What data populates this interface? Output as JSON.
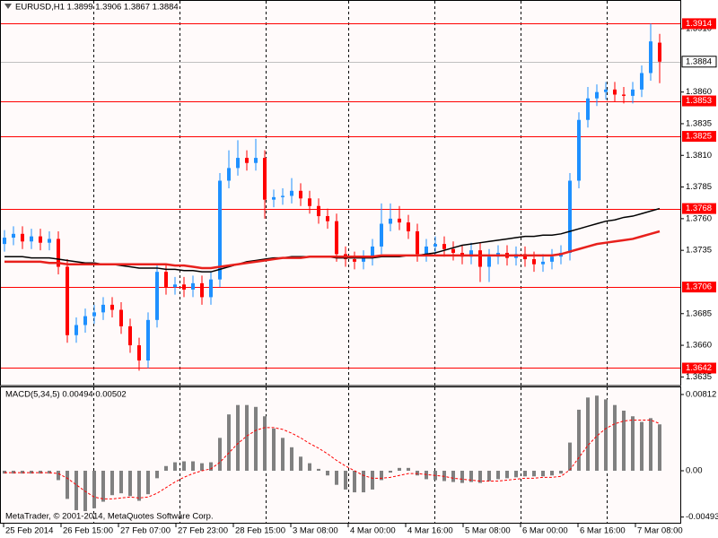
{
  "chart_data": [
    {
      "type": "candlestick",
      "title": "EURUSD,H1  1.3899 1.3906 1.3867 1.3884",
      "up_color": "#1e90ff",
      "down_color": "#ff0000",
      "level_color": "#ff0000",
      "candles": [
        [
          1.374,
          1.3751,
          1.3734,
          1.3745
        ],
        [
          1.3745,
          1.3754,
          1.3739,
          1.3748
        ],
        [
          1.3748,
          1.3754,
          1.3736,
          1.3742
        ],
        [
          1.3742,
          1.3752,
          1.3736,
          1.3746
        ],
        [
          1.3746,
          1.3752,
          1.3735,
          1.3741
        ],
        [
          1.3741,
          1.375,
          1.3735,
          1.3744
        ],
        [
          1.3744,
          1.375,
          1.3716,
          1.3722
        ],
        [
          1.3722,
          1.3728,
          1.3662,
          1.3668
        ],
        [
          1.3668,
          1.3682,
          1.3662,
          1.3676
        ],
        [
          1.3676,
          1.3689,
          1.367,
          1.3683
        ],
        [
          1.3683,
          1.3692,
          1.3677,
          1.3686
        ],
        [
          1.3686,
          1.3698,
          1.368,
          1.3692
        ],
        [
          1.3692,
          1.3698,
          1.3682,
          1.3688
        ],
        [
          1.3688,
          1.3694,
          1.3669,
          1.3675
        ],
        [
          1.3675,
          1.3681,
          1.3654,
          1.366
        ],
        [
          1.366,
          1.3666,
          1.364,
          1.3648
        ],
        [
          1.3648,
          1.3686,
          1.3642,
          1.368
        ],
        [
          1.368,
          1.3724,
          1.3674,
          1.3718
        ],
        [
          1.3718,
          1.3724,
          1.37,
          1.3706
        ],
        [
          1.3706,
          1.3714,
          1.37,
          1.3708
        ],
        [
          1.3708,
          1.3714,
          1.3698,
          1.3704
        ],
        [
          1.3704,
          1.3715,
          1.3698,
          1.3709
        ],
        [
          1.3709,
          1.3715,
          1.3692,
          1.3698
        ],
        [
          1.3698,
          1.3718,
          1.3692,
          1.3712
        ],
        [
          1.3712,
          1.3796,
          1.3706,
          1.379
        ],
        [
          1.379,
          1.3814,
          1.3784,
          1.38
        ],
        [
          1.38,
          1.3822,
          1.3794,
          1.3808
        ],
        [
          1.3808,
          1.3814,
          1.3798,
          1.3804
        ],
        [
          1.3804,
          1.3823,
          1.3798,
          1.3808
        ],
        [
          1.3808,
          1.3814,
          1.376,
          1.3775
        ],
        [
          1.3775,
          1.3783,
          1.3769,
          1.3777
        ],
        [
          1.3777,
          1.3784,
          1.3771,
          1.3778
        ],
        [
          1.3778,
          1.3792,
          1.3772,
          1.3782
        ],
        [
          1.3782,
          1.3788,
          1.377,
          1.3776
        ],
        [
          1.3776,
          1.3782,
          1.3764,
          1.377
        ],
        [
          1.377,
          1.3776,
          1.3756,
          1.3762
        ],
        [
          1.3762,
          1.3768,
          1.3752,
          1.3758
        ],
        [
          1.3758,
          1.3764,
          1.3726,
          1.3732
        ],
        [
          1.3732,
          1.3738,
          1.3722,
          1.3728
        ],
        [
          1.3728,
          1.3734,
          1.372,
          1.3726
        ],
        [
          1.3726,
          1.3735,
          1.372,
          1.3729
        ],
        [
          1.3729,
          1.3744,
          1.3723,
          1.3738
        ],
        [
          1.3738,
          1.3772,
          1.3732,
          1.3756
        ],
        [
          1.3756,
          1.3772,
          1.375,
          1.376
        ],
        [
          1.376,
          1.377,
          1.3751,
          1.3757
        ],
        [
          1.3757,
          1.3763,
          1.3744,
          1.375
        ],
        [
          1.375,
          1.3756,
          1.3726,
          1.3732
        ],
        [
          1.3732,
          1.3744,
          1.3726,
          1.3738
        ],
        [
          1.3738,
          1.3746,
          1.3732,
          1.374
        ],
        [
          1.374,
          1.3746,
          1.373,
          1.3736
        ],
        [
          1.3736,
          1.3742,
          1.3727,
          1.3733
        ],
        [
          1.3733,
          1.3739,
          1.3724,
          1.373
        ],
        [
          1.373,
          1.3741,
          1.3724,
          1.3735
        ],
        [
          1.3735,
          1.3741,
          1.371,
          1.3722
        ],
        [
          1.3722,
          1.3736,
          1.371,
          1.373
        ],
        [
          1.373,
          1.3739,
          1.3724,
          1.3733
        ],
        [
          1.3733,
          1.3739,
          1.3723,
          1.3729
        ],
        [
          1.3729,
          1.3738,
          1.3723,
          1.3732
        ],
        [
          1.3732,
          1.3738,
          1.3722,
          1.3728
        ],
        [
          1.3728,
          1.3734,
          1.3718,
          1.3724
        ],
        [
          1.3724,
          1.3732,
          1.3718,
          1.3726
        ],
        [
          1.3726,
          1.3736,
          1.372,
          1.373
        ],
        [
          1.373,
          1.3739,
          1.3724,
          1.3733
        ],
        [
          1.3733,
          1.3796,
          1.3727,
          1.379
        ],
        [
          1.379,
          1.3844,
          1.3784,
          1.3838
        ],
        [
          1.3838,
          1.3864,
          1.3832,
          1.3855
        ],
        [
          1.3855,
          1.3866,
          1.3849,
          1.386
        ],
        [
          1.386,
          1.3868,
          1.3854,
          1.3862
        ],
        [
          1.3862,
          1.3868,
          1.3852,
          1.3858
        ],
        [
          1.3858,
          1.3864,
          1.3851,
          1.3857
        ],
        [
          1.3857,
          1.3868,
          1.3851,
          1.3862
        ],
        [
          1.3862,
          1.3881,
          1.3856,
          1.3875
        ],
        [
          1.3875,
          1.3914,
          1.3869,
          1.39
        ],
        [
          1.3899,
          1.3906,
          1.3867,
          1.3884
        ]
      ],
      "series": [
        {
          "color": "#000000",
          "values": [
            1.373,
            1.373,
            1.373,
            1.3729,
            1.3729,
            1.3729,
            1.3728,
            1.3727,
            1.3726,
            1.3725,
            1.3725,
            1.3724,
            1.3724,
            1.3723,
            1.3722,
            1.3721,
            1.3721,
            1.3721,
            1.372,
            1.372,
            1.3719,
            1.3719,
            1.3718,
            1.3718,
            1.372,
            1.3722,
            1.3724,
            1.3726,
            1.3727,
            1.3728,
            1.3729,
            1.3729,
            1.373,
            1.373,
            1.373,
            1.373,
            1.373,
            1.3729,
            1.3729,
            1.3729,
            1.3729,
            1.3729,
            1.373,
            1.373,
            1.373,
            1.3731,
            1.3731,
            1.3732,
            1.3733,
            1.3735,
            1.3737,
            1.3739,
            1.374,
            1.3741,
            1.3742,
            1.3743,
            1.3744,
            1.3745,
            1.3746,
            1.3746,
            1.3747,
            1.3747,
            1.3748,
            1.375,
            1.3752,
            1.3754,
            1.3756,
            1.3758,
            1.3759,
            1.3761,
            1.3762,
            1.3764,
            1.3766,
            1.3768
          ]
        },
        {
          "color": "#e8201c",
          "values": [
            1.3726,
            1.3726,
            1.3726,
            1.3726,
            1.3726,
            1.3725,
            1.3725,
            1.3724,
            1.3724,
            1.3724,
            1.3724,
            1.3724,
            1.3724,
            1.3724,
            1.3724,
            1.3724,
            1.3724,
            1.3724,
            1.3724,
            1.3723,
            1.3723,
            1.3722,
            1.3721,
            1.3721,
            1.3722,
            1.3723,
            1.3724,
            1.3725,
            1.3726,
            1.3727,
            1.3728,
            1.3729,
            1.3729,
            1.3729,
            1.373,
            1.373,
            1.373,
            1.373,
            1.373,
            1.373,
            1.373,
            1.373,
            1.3731,
            1.3731,
            1.3731,
            1.3731,
            1.3731,
            1.3731,
            1.3731,
            1.3731,
            1.3731,
            1.3731,
            1.3731,
            1.3731,
            1.3731,
            1.3731,
            1.3731,
            1.3731,
            1.3731,
            1.3731,
            1.3731,
            1.3731,
            1.3732,
            1.3734,
            1.3736,
            1.3738,
            1.374,
            1.3741,
            1.3742,
            1.3743,
            1.3744,
            1.3746,
            1.3748,
            1.375
          ]
        }
      ],
      "levels": [
        1.3914,
        1.3853,
        1.3825,
        1.3768,
        1.3706,
        1.3642
      ],
      "current_price": 1.3884,
      "ylim": [
        1.36296,
        1.39327
      ],
      "yticks": [
        {
          "value": 1.391,
          "label": "1.3910"
        },
        {
          "value": 1.386,
          "label": "1.3860"
        },
        1.3835,
        {
          "value": 1.381,
          "label": "1.3810"
        },
        1.3785,
        {
          "value": 1.376,
          "label": "1.3760"
        },
        1.3735,
        1.3685,
        {
          "value": 1.366,
          "label": "1.3660"
        },
        1.3635
      ]
    },
    {
      "type": "macd",
      "title": "MACD(5,34,5) 0.00494 0.00502",
      "histogram": {
        "color": "#808080",
        "values": [
          -0.0003,
          -0.0003,
          -0.0003,
          -0.0003,
          -0.0003,
          -0.0003,
          -0.001,
          -0.003,
          -0.0042,
          -0.0043,
          -0.004,
          -0.0033,
          -0.0026,
          -0.0024,
          -0.0027,
          -0.0032,
          -0.0025,
          -0.0008,
          0.0005,
          0.0009,
          0.001,
          0.001,
          0.0008,
          0.0009,
          0.0035,
          0.006,
          0.007,
          0.007,
          0.0068,
          0.0058,
          0.0045,
          0.0035,
          0.0025,
          0.0015,
          0.0008,
          0.0002,
          -0.0005,
          -0.0015,
          -0.002,
          -0.0023,
          -0.0023,
          -0.002,
          -0.001,
          -0.0002,
          0.0003,
          0.0003,
          -0.0005,
          -0.0009,
          -0.001,
          -0.0011,
          -0.0012,
          -0.0013,
          -0.0012,
          -0.0013,
          -0.0011,
          -0.0009,
          -0.0008,
          -0.0007,
          -0.0006,
          -0.0006,
          -0.0006,
          -0.0005,
          -0.0003,
          0.003,
          0.0065,
          0.0078,
          0.008,
          0.0076,
          0.007,
          0.0064,
          0.0058,
          0.0052,
          0.0056,
          0.00494
        ]
      },
      "signal": {
        "color": "#ff0000",
        "values": [
          -0.0002,
          -0.0002,
          -0.0002,
          -0.0002,
          -0.0002,
          -0.0002,
          -0.0003,
          -0.0008,
          -0.0015,
          -0.0022,
          -0.0028,
          -0.003,
          -0.003,
          -0.0029,
          -0.0028,
          -0.0029,
          -0.0028,
          -0.0024,
          -0.0018,
          -0.0012,
          -0.0007,
          -0.0003,
          0.0,
          0.0002,
          0.0009,
          0.0019,
          0.0029,
          0.0037,
          0.0043,
          0.0046,
          0.0046,
          0.0044,
          0.004,
          0.0035,
          0.0029,
          0.0024,
          0.0018,
          0.0011,
          0.0005,
          0.0,
          -0.0005,
          -0.0008,
          -0.0008,
          -0.0007,
          -0.0005,
          -0.0003,
          -0.0003,
          -0.0004,
          -0.0005,
          -0.0006,
          -0.0008,
          -0.0009,
          -0.001,
          -0.0011,
          -0.0011,
          -0.0011,
          -0.001,
          -0.0009,
          -0.0008,
          -0.0008,
          -0.0007,
          -0.0007,
          -0.0006,
          0.0001,
          0.0014,
          0.0027,
          0.0037,
          0.0045,
          0.005,
          0.0053,
          0.0054,
          0.0054,
          0.0054,
          0.00502
        ]
      },
      "ylim": [
        -0.00554,
        0.00888
      ],
      "yticks": [
        0.00812,
        {
          "value": 0,
          "label": "0.00"
        },
        -0.00493
      ],
      "xticklabels": [
        "25 Feb 2014",
        "26 Feb 15:00",
        "27 Feb 07:00",
        "27 Feb 23:00",
        "28 Feb 15:00",
        "3 Mar 08:00",
        "4 Mar 00:00",
        "4 Mar 16:00",
        "5 Mar 08:00",
        "6 Mar 00:00",
        "6 Mar 16:00",
        "7 Mar 08:00"
      ]
    }
  ],
  "footer": "MetaTrader, © 2001-2014, MetaQuotes Software Corp."
}
